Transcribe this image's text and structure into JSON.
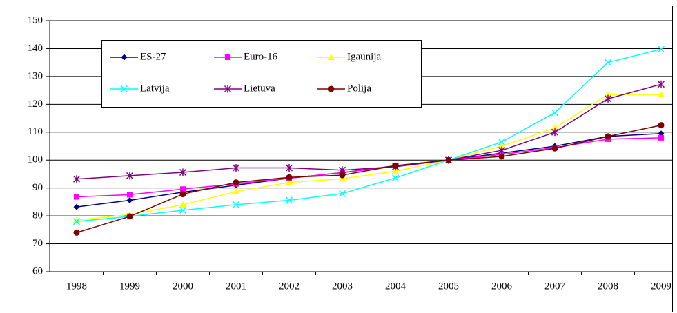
{
  "chart_data": {
    "type": "line",
    "categories": [
      "1998",
      "1999",
      "2000",
      "2001",
      "2002",
      "2003",
      "2004",
      "2005",
      "2006",
      "2007",
      "2008",
      "2009"
    ],
    "series": [
      {
        "name": "ES-27",
        "color": "#000080",
        "marker": "diamond",
        "values": [
          83.2,
          85.6,
          88.5,
          91,
          93.5,
          95.5,
          98,
          100,
          102.5,
          105,
          108.5,
          109.5
        ]
      },
      {
        "name": "Euro-16",
        "color": "#ff00ff",
        "marker": "square",
        "values": [
          86.8,
          87.6,
          89.6,
          91.5,
          93.5,
          95.5,
          97.8,
          100,
          102,
          104.5,
          107.5,
          108
        ]
      },
      {
        "name": "Igaunija",
        "color": "#ffff00",
        "marker": "triangle",
        "values": [
          78.5,
          80.5,
          84,
          88.7,
          92,
          93.3,
          96,
          100,
          105,
          111.5,
          123.5,
          123.5
        ]
      },
      {
        "name": "Latvija",
        "color": "#00ffff",
        "marker": "x",
        "values": [
          78,
          79.8,
          82,
          84,
          85.6,
          88,
          93.6,
          100,
          106.5,
          117,
          135,
          139.8
        ]
      },
      {
        "name": "Lietuva",
        "color": "#800080",
        "marker": "star",
        "values": [
          93.2,
          94.4,
          95.6,
          97.2,
          97.2,
          96.4,
          97.6,
          100,
          103.5,
          110,
          122,
          127.2
        ]
      },
      {
        "name": "Polija",
        "color": "#800000",
        "marker": "circle",
        "values": [
          74,
          79.8,
          87.8,
          92,
          93.8,
          94.6,
          98,
          100,
          101.3,
          104.2,
          108.5,
          112.5
        ]
      }
    ],
    "ylim": [
      60,
      150
    ],
    "yticks": [
      60,
      70,
      80,
      90,
      100,
      110,
      120,
      130,
      140,
      150
    ],
    "grid": true
  }
}
